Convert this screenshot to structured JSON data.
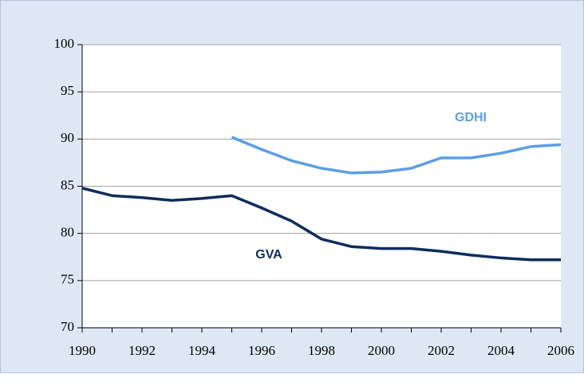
{
  "chart_data": {
    "type": "line",
    "x": [
      1990,
      1991,
      1992,
      1993,
      1994,
      1995,
      1996,
      1997,
      1998,
      1999,
      2000,
      2001,
      2002,
      2003,
      2004,
      2005,
      2006
    ],
    "series": [
      {
        "name": "GVA",
        "color": "#0e2d5c",
        "values": [
          84.8,
          84.0,
          83.8,
          83.5,
          83.7,
          84.0,
          82.7,
          81.3,
          79.4,
          78.6,
          78.4,
          78.4,
          78.1,
          77.7,
          77.4,
          77.2,
          77.2
        ]
      },
      {
        "name": "GDHI",
        "color": "#5b9ee6",
        "values": [
          null,
          null,
          null,
          null,
          null,
          90.2,
          88.9,
          87.7,
          86.9,
          86.4,
          86.5,
          86.9,
          88.0,
          88.0,
          88.5,
          89.2,
          89.4
        ]
      }
    ],
    "xlim": [
      1990,
      2006
    ],
    "xticks": [
      1990,
      1992,
      1994,
      1996,
      1998,
      2000,
      2002,
      2004,
      2006
    ],
    "ylim": [
      70,
      100
    ],
    "yticks": [
      70,
      75,
      80,
      85,
      90,
      95,
      100
    ],
    "grid": true
  }
}
